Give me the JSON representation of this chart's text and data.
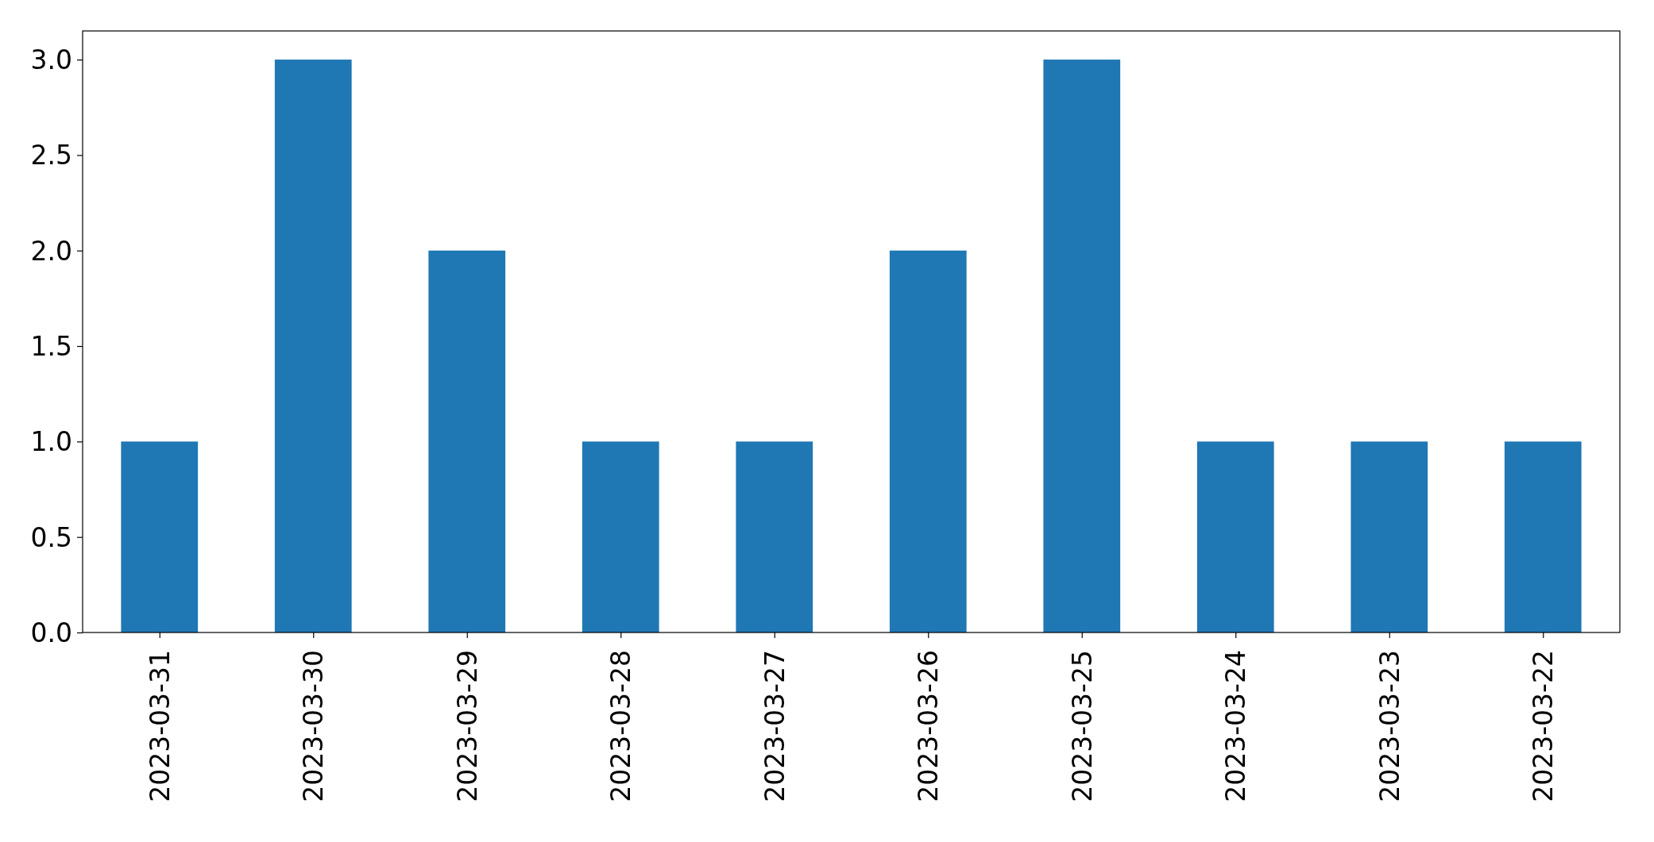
{
  "chart_data": {
    "type": "bar",
    "categories": [
      "2023-03-31",
      "2023-03-30",
      "2023-03-29",
      "2023-03-28",
      "2023-03-27",
      "2023-03-26",
      "2023-03-25",
      "2023-03-24",
      "2023-03-23",
      "2023-03-22"
    ],
    "values": [
      1,
      3,
      2,
      1,
      1,
      2,
      3,
      1,
      1,
      1
    ],
    "color": "#1f77b4",
    "ylim": [
      0,
      3.15
    ],
    "yticks": [
      {
        "value": 0,
        "label": "0.0"
      },
      {
        "value": 0.5,
        "label": "0.5"
      },
      {
        "value": 1,
        "label": "1.0"
      },
      {
        "value": 1.5,
        "label": "1.5"
      },
      {
        "value": 2,
        "label": "2.0"
      },
      {
        "value": 2.5,
        "label": "2.5"
      },
      {
        "value": 3,
        "label": "3.0"
      }
    ],
    "grid": false
  }
}
